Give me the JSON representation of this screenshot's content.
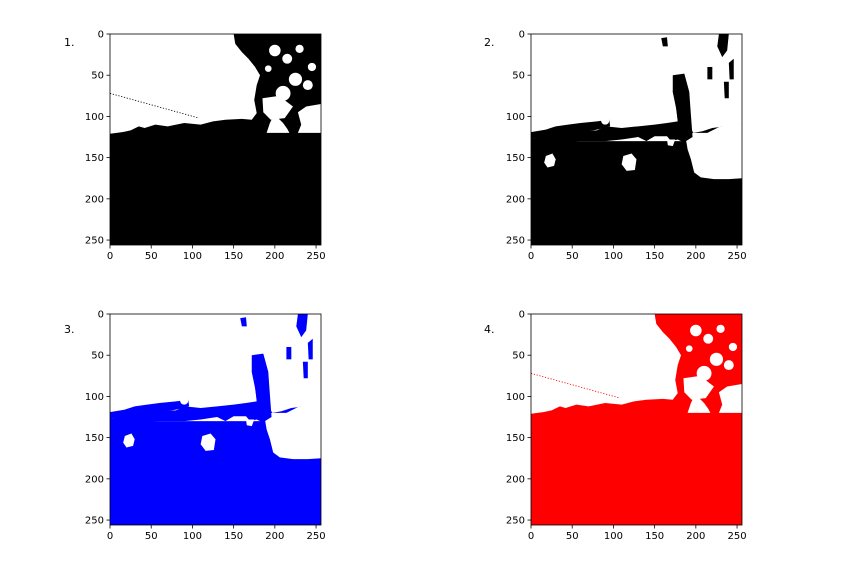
{
  "panels": [
    {
      "label": "1.",
      "mask_color": "#000000"
    },
    {
      "label": "2.",
      "mask_color": "#000000"
    },
    {
      "label": "3.",
      "mask_color": "#0000ff"
    },
    {
      "label": "4.",
      "mask_color": "#ff0000"
    }
  ],
  "axes": {
    "x_ticks": [
      "0",
      "50",
      "100",
      "150",
      "200",
      "250"
    ],
    "y_ticks": [
      "0",
      "50",
      "100",
      "150",
      "200",
      "250"
    ],
    "x_range": [
      0,
      256
    ],
    "y_range": [
      0,
      256
    ],
    "y_inverted": true
  },
  "background_color": "#ffffff"
}
